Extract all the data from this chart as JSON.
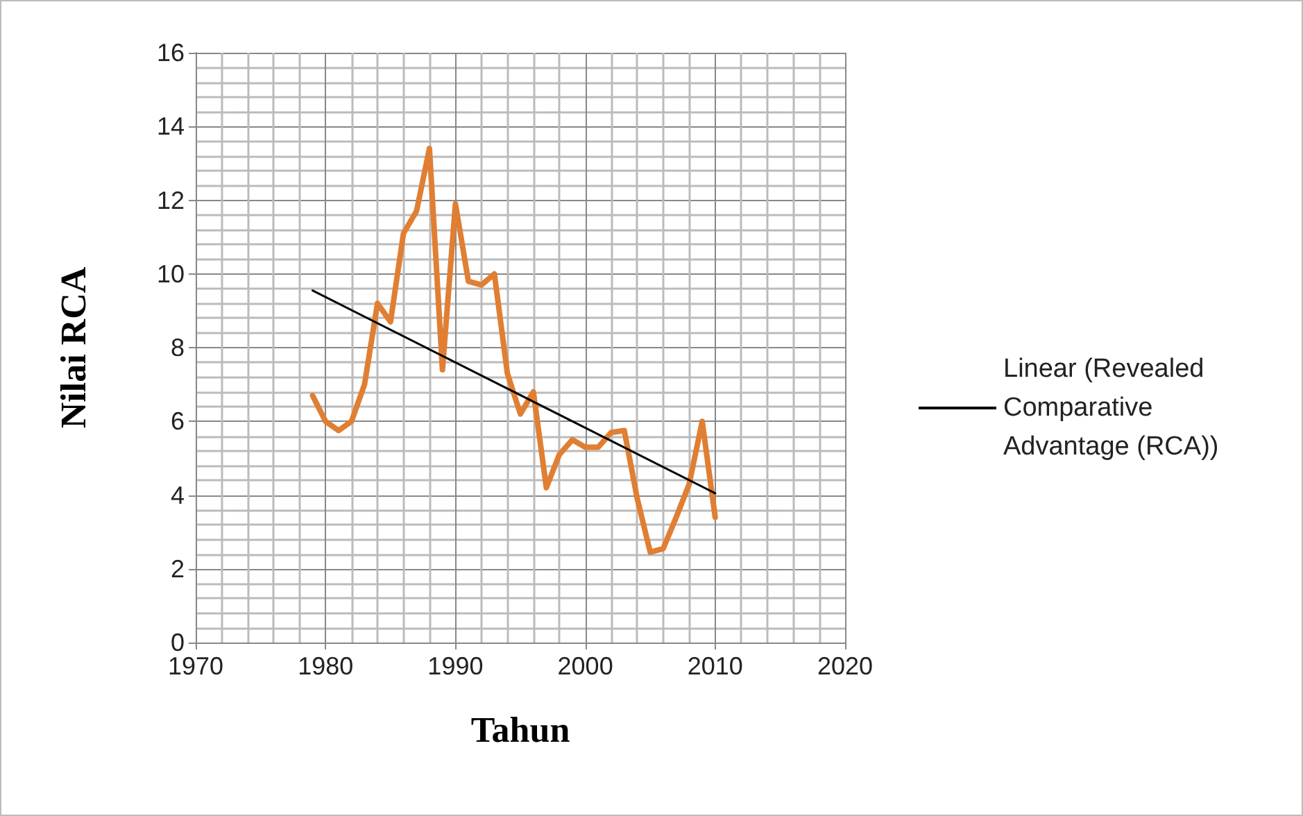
{
  "chart_data": {
    "type": "line",
    "xlabel": "Tahun",
    "ylabel": "Nilai RCA",
    "xlim": [
      1970,
      2020
    ],
    "xticks": [
      1970,
      1980,
      1990,
      2000,
      2010,
      2020
    ],
    "ylim": [
      0,
      16
    ],
    "yticks": [
      0,
      2,
      4,
      6,
      8,
      10,
      12,
      14,
      16
    ],
    "grid": true,
    "legend": "right",
    "marker": "none",
    "series": [
      {
        "color": "#e07f33",
        "x": [
          1979,
          1980,
          1981,
          1982,
          1983,
          1984,
          1985,
          1986,
          1987,
          1988,
          1989,
          1990,
          1991,
          1992,
          1993,
          1994,
          1995,
          1996,
          1997,
          1998,
          1999,
          2000,
          2001,
          2002,
          2003,
          2004,
          2005,
          2006,
          2007,
          2008,
          2009,
          2010
        ],
        "values": [
          6.7,
          6.0,
          5.75,
          6.0,
          7.0,
          9.2,
          8.7,
          11.1,
          11.7,
          13.4,
          7.4,
          11.9,
          9.8,
          9.7,
          10.0,
          7.3,
          6.2,
          6.8,
          4.2,
          5.1,
          5.5,
          5.3,
          5.3,
          5.7,
          5.75,
          3.9,
          2.45,
          2.55,
          3.4,
          4.3,
          6.0,
          3.4
        ]
      },
      {
        "name": "Linear (Revealed Comparative Advantage (RCA))",
        "color": "#000000",
        "x": [
          1979,
          2010
        ],
        "values": [
          9.55,
          4.05
        ]
      }
    ]
  }
}
